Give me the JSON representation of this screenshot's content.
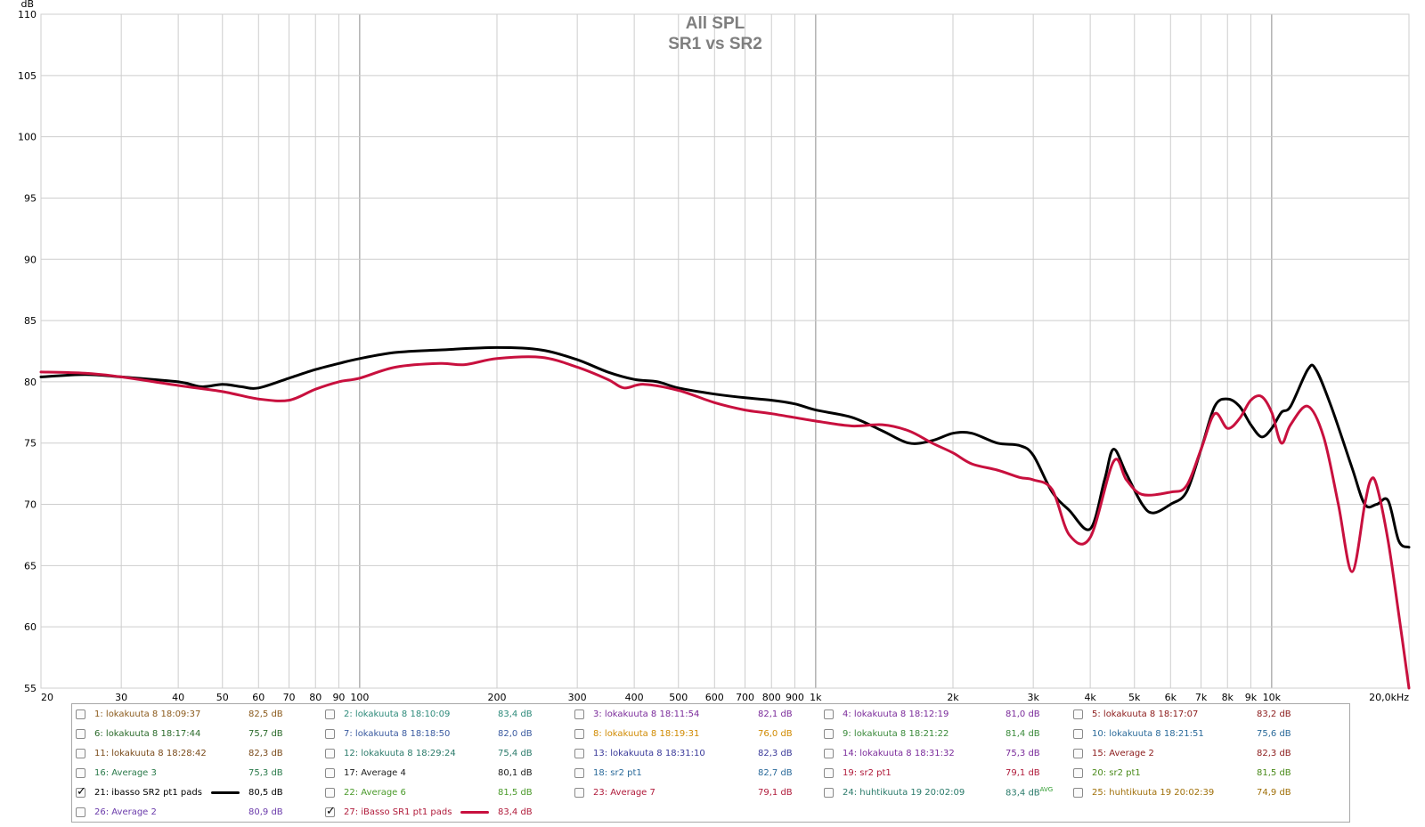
{
  "chart_data": {
    "type": "line",
    "title": "All SPL",
    "subtitle": "SR1 vs SR2",
    "ylabel": "dB",
    "xscale": "log",
    "xlim": [
      20,
      20000
    ],
    "ylim": [
      55,
      110
    ],
    "grid": true,
    "x_ticks": [
      {
        "v": 20,
        "t": "20"
      },
      {
        "v": 30,
        "t": "30"
      },
      {
        "v": 40,
        "t": "40"
      },
      {
        "v": 50,
        "t": "50"
      },
      {
        "v": 60,
        "t": "60"
      },
      {
        "v": 70,
        "t": "70"
      },
      {
        "v": 80,
        "t": "80"
      },
      {
        "v": 90,
        "t": "90"
      },
      {
        "v": 100,
        "t": "100"
      },
      {
        "v": 200,
        "t": "200"
      },
      {
        "v": 300,
        "t": "300"
      },
      {
        "v": 400,
        "t": "400"
      },
      {
        "v": 500,
        "t": "500"
      },
      {
        "v": 600,
        "t": "600"
      },
      {
        "v": 700,
        "t": "700"
      },
      {
        "v": 800,
        "t": "800"
      },
      {
        "v": 900,
        "t": "900"
      },
      {
        "v": 1000,
        "t": "1k"
      },
      {
        "v": 2000,
        "t": "2k"
      },
      {
        "v": 3000,
        "t": "3k"
      },
      {
        "v": 4000,
        "t": "4k"
      },
      {
        "v": 5000,
        "t": "5k"
      },
      {
        "v": 6000,
        "t": "6k"
      },
      {
        "v": 7000,
        "t": "7k"
      },
      {
        "v": 8000,
        "t": "8k"
      },
      {
        "v": 9000,
        "t": "9k"
      },
      {
        "v": 10000,
        "t": "10k"
      },
      {
        "v": 20000,
        "t": "20,0kHz"
      }
    ],
    "y_ticks": [
      55,
      60,
      65,
      70,
      75,
      80,
      85,
      90,
      95,
      100,
      105,
      110
    ],
    "series": [
      {
        "name": "21: ibasso SR2 pt1 pads",
        "color": "#000000",
        "points": [
          [
            20,
            80.4
          ],
          [
            25,
            80.6
          ],
          [
            30,
            80.4
          ],
          [
            40,
            80.0
          ],
          [
            45,
            79.6
          ],
          [
            50,
            79.8
          ],
          [
            55,
            79.6
          ],
          [
            60,
            79.5
          ],
          [
            70,
            80.3
          ],
          [
            80,
            81.0
          ],
          [
            90,
            81.5
          ],
          [
            100,
            81.9
          ],
          [
            120,
            82.4
          ],
          [
            150,
            82.6
          ],
          [
            200,
            82.8
          ],
          [
            250,
            82.6
          ],
          [
            300,
            81.8
          ],
          [
            350,
            80.8
          ],
          [
            400,
            80.2
          ],
          [
            450,
            80.0
          ],
          [
            500,
            79.5
          ],
          [
            600,
            79.0
          ],
          [
            700,
            78.7
          ],
          [
            800,
            78.5
          ],
          [
            900,
            78.2
          ],
          [
            1000,
            77.7
          ],
          [
            1200,
            77.1
          ],
          [
            1400,
            76.0
          ],
          [
            1600,
            75.0
          ],
          [
            1800,
            75.2
          ],
          [
            2000,
            75.8
          ],
          [
            2200,
            75.8
          ],
          [
            2500,
            75.0
          ],
          [
            2800,
            74.8
          ],
          [
            3000,
            74.0
          ],
          [
            3300,
            71.0
          ],
          [
            3600,
            69.5
          ],
          [
            4000,
            68.0
          ],
          [
            4300,
            72.0
          ],
          [
            4500,
            74.5
          ],
          [
            4800,
            72.5
          ],
          [
            5200,
            70.0
          ],
          [
            5500,
            69.3
          ],
          [
            6000,
            70.0
          ],
          [
            6500,
            71.0
          ],
          [
            7000,
            74.5
          ],
          [
            7500,
            78.0
          ],
          [
            8000,
            78.6
          ],
          [
            8500,
            78.0
          ],
          [
            9000,
            76.5
          ],
          [
            9500,
            75.5
          ],
          [
            10000,
            76.2
          ],
          [
            10500,
            77.5
          ],
          [
            11000,
            78.0
          ],
          [
            12000,
            81.0
          ],
          [
            12500,
            81.0
          ],
          [
            13500,
            78.0
          ],
          [
            15000,
            73.0
          ],
          [
            16000,
            70.0
          ],
          [
            17000,
            70.0
          ],
          [
            18000,
            70.3
          ],
          [
            19000,
            67.0
          ],
          [
            20000,
            66.5
          ]
        ]
      },
      {
        "name": "27: iBasso SR1 pt1 pads",
        "color": "#c8103e",
        "points": [
          [
            20,
            80.8
          ],
          [
            25,
            80.7
          ],
          [
            30,
            80.4
          ],
          [
            40,
            79.7
          ],
          [
            50,
            79.2
          ],
          [
            60,
            78.6
          ],
          [
            70,
            78.5
          ],
          [
            80,
            79.4
          ],
          [
            90,
            80.0
          ],
          [
            100,
            80.3
          ],
          [
            120,
            81.2
          ],
          [
            150,
            81.5
          ],
          [
            170,
            81.4
          ],
          [
            200,
            81.9
          ],
          [
            250,
            82.0
          ],
          [
            300,
            81.2
          ],
          [
            350,
            80.2
          ],
          [
            380,
            79.5
          ],
          [
            420,
            79.8
          ],
          [
            500,
            79.3
          ],
          [
            600,
            78.3
          ],
          [
            700,
            77.7
          ],
          [
            800,
            77.4
          ],
          [
            1000,
            76.8
          ],
          [
            1200,
            76.4
          ],
          [
            1400,
            76.5
          ],
          [
            1600,
            76.0
          ],
          [
            1800,
            75.0
          ],
          [
            2000,
            74.2
          ],
          [
            2200,
            73.3
          ],
          [
            2500,
            72.8
          ],
          [
            2800,
            72.2
          ],
          [
            3000,
            72.0
          ],
          [
            3300,
            71.2
          ],
          [
            3600,
            67.5
          ],
          [
            4000,
            67.3
          ],
          [
            4500,
            73.5
          ],
          [
            4800,
            72.0
          ],
          [
            5200,
            70.8
          ],
          [
            6000,
            71.0
          ],
          [
            6500,
            71.5
          ],
          [
            7000,
            74.5
          ],
          [
            7500,
            77.4
          ],
          [
            8000,
            76.2
          ],
          [
            8500,
            77.0
          ],
          [
            9000,
            78.5
          ],
          [
            9500,
            78.8
          ],
          [
            10000,
            77.5
          ],
          [
            10500,
            75.0
          ],
          [
            11000,
            76.5
          ],
          [
            12000,
            78.0
          ],
          [
            13000,
            75.5
          ],
          [
            14000,
            70.0
          ],
          [
            15000,
            64.5
          ],
          [
            16000,
            70.0
          ],
          [
            16500,
            72.0
          ],
          [
            17000,
            71.5
          ],
          [
            18000,
            67.0
          ],
          [
            19000,
            61.0
          ],
          [
            20000,
            55.0
          ]
        ]
      }
    ]
  },
  "legend": [
    {
      "id": "1",
      "label": "1: lokakuuta 8 18:09:37",
      "value": "82,5 dB",
      "color": "#8b5a1c",
      "checked": false
    },
    {
      "id": "2",
      "label": "2: lokakuuta 8 18:10:09",
      "value": "83,4 dB",
      "color": "#2d8a7a",
      "checked": false
    },
    {
      "id": "3",
      "label": "3: lokakuuta 8 18:11:54",
      "value": "82,1 dB",
      "color": "#7a2a9a",
      "checked": false
    },
    {
      "id": "4",
      "label": "4: lokakuuta 8 18:12:19",
      "value": "81,0 dB",
      "color": "#7a2a9a",
      "checked": false
    },
    {
      "id": "5",
      "label": "5: lokakuuta 8 18:17:07",
      "value": "83,2 dB",
      "color": "#8b1a1a",
      "checked": false
    },
    {
      "id": "6",
      "label": "6: lokakuuta 8 18:17:44",
      "value": "75,7 dB",
      "color": "#2a6a2a",
      "checked": false
    },
    {
      "id": "7",
      "label": "7: lokakuuta 8 18:18:50",
      "value": "82,0 dB",
      "color": "#3a5aa0",
      "checked": false
    },
    {
      "id": "8",
      "label": "8: lokakuuta 8 18:19:31",
      "value": "76,0 dB",
      "color": "#d08a00",
      "checked": false
    },
    {
      "id": "9",
      "label": "9: lokakuuta 8 18:21:22",
      "value": "81,4 dB",
      "color": "#3a8a3a",
      "checked": false
    },
    {
      "id": "10",
      "label": "10: lokakuuta 8 18:21:51",
      "value": "75,6 dB",
      "color": "#2a6a9a",
      "checked": false
    },
    {
      "id": "11",
      "label": "11: lokakuuta 8 18:28:42",
      "value": "82,3 dB",
      "color": "#7a4a1a",
      "checked": false
    },
    {
      "id": "12",
      "label": "12: lokakuuta 8 18:29:24",
      "value": "75,4 dB",
      "color": "#2a7a6a",
      "checked": false
    },
    {
      "id": "13",
      "label": "13: lokakuuta 8 18:31:10",
      "value": "82,3 dB",
      "color": "#3a3a9a",
      "checked": false
    },
    {
      "id": "14",
      "label": "14: lokakuuta 8 18:31:32",
      "value": "75,3 dB",
      "color": "#7a2a9a",
      "checked": false
    },
    {
      "id": "15",
      "label": "15: Average 2",
      "value": "82,3 dB",
      "color": "#8b1a1a",
      "checked": false
    },
    {
      "id": "16",
      "label": "16: Average 3",
      "value": "75,3 dB",
      "color": "#2a7a4a",
      "checked": false
    },
    {
      "id": "17",
      "label": "17: Average 4",
      "value": "80,1 dB",
      "color": "#1a1a1a",
      "checked": false
    },
    {
      "id": "18",
      "label": "18: sr2 pt1",
      "value": "82,7 dB",
      "color": "#2a6a9a",
      "checked": false
    },
    {
      "id": "19",
      "label": "19: sr2 pt1",
      "value": "79,1 dB",
      "color": "#b01a3a",
      "checked": false
    },
    {
      "id": "20",
      "label": "20: sr2 pt1",
      "value": "81,5 dB",
      "color": "#4a8a1a",
      "checked": false
    },
    {
      "id": "21",
      "label": "21: ibasso SR2 pt1 pads",
      "value": "80,5 dB",
      "color": "#000000",
      "checked": true
    },
    {
      "id": "22",
      "label": "22: Average 6",
      "value": "81,5 dB",
      "color": "#4a9a2a",
      "checked": false
    },
    {
      "id": "23",
      "label": "23: Average 7",
      "value": "79,1 dB",
      "color": "#b01a3a",
      "checked": false
    },
    {
      "id": "24",
      "label": "24: huhtikuuta 19 20:02:09",
      "value": "83,4 dB",
      "sup": "AVG",
      "color": "#2a7a6a",
      "checked": false
    },
    {
      "id": "25",
      "label": "25: huhtikuuta 19 20:02:39",
      "value": "74,9 dB",
      "color": "#a0700a",
      "checked": false
    },
    {
      "id": "26",
      "label": "26: Average 2",
      "value": "80,9 dB",
      "color": "#6a3aaa",
      "checked": false
    },
    {
      "id": "27",
      "label": "27: iBasso SR1 pt1 pads",
      "value": "83,4 dB",
      "color": "#b01a3a",
      "checked": true
    }
  ]
}
